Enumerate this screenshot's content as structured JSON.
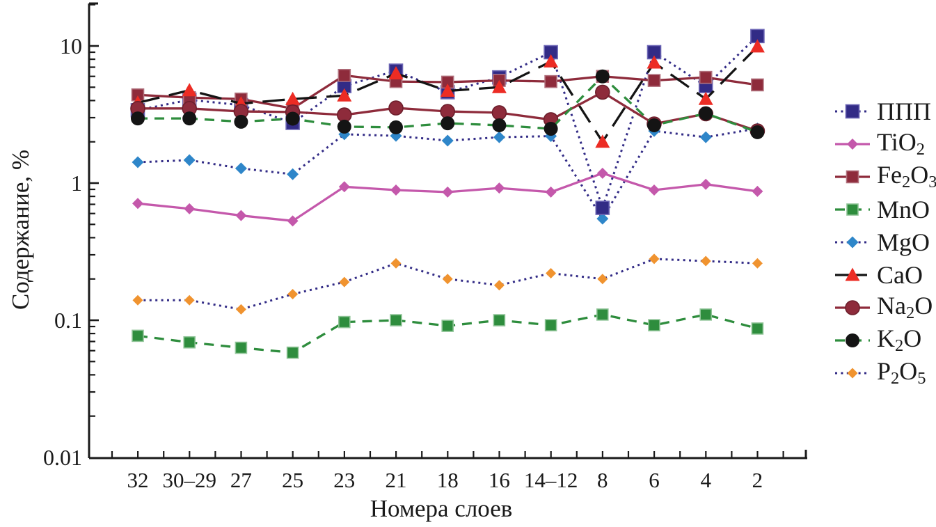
{
  "chart_data": {
    "type": "line",
    "title": "",
    "xlabel": "Номера слоев",
    "ylabel": "Содержание, %",
    "y_scale": "log",
    "ylim": [
      0.01,
      20
    ],
    "grid": false,
    "legend_position": "right",
    "y_tick_labels": [
      "10",
      "1",
      "0.1",
      "0.01"
    ],
    "y_tick_values": [
      10,
      1,
      0.1,
      0.01
    ],
    "categories": [
      "32",
      "30–29",
      "27",
      "25",
      "23",
      "21",
      "18",
      "16",
      "14–12",
      "8",
      "6",
      "4",
      "2"
    ],
    "series": [
      {
        "key": "ppp",
        "name": "ППП",
        "label_parts": [
          {
            "text": "ППП"
          }
        ],
        "color": "#322b86",
        "line_color": "#322b86",
        "line_style": "dotted",
        "marker": "square",
        "marker_size": 19,
        "edge": "#6c66b5",
        "z": 5,
        "values": [
          3.4,
          4.05,
          3.7,
          2.75,
          5.1,
          6.6,
          4.6,
          5.9,
          9.0,
          0.66,
          9.0,
          5.1,
          11.8
        ]
      },
      {
        "key": "tio2",
        "name": "TiO2",
        "label_parts": [
          {
            "text": "TiO"
          },
          {
            "text": "2",
            "sub": true
          }
        ],
        "color": "#c458ab",
        "line_color": "#c458ab",
        "line_style": "solid",
        "marker": "diamond",
        "marker_size": 16,
        "edge": "",
        "z": 3,
        "values": [
          0.71,
          0.65,
          0.58,
          0.53,
          0.94,
          0.89,
          0.86,
          0.92,
          0.86,
          1.18,
          0.89,
          0.98,
          0.87
        ]
      },
      {
        "key": "fe2o3",
        "name": "Fe2O3",
        "label_parts": [
          {
            "text": "Fe"
          },
          {
            "text": "2",
            "sub": true
          },
          {
            "text": "O"
          },
          {
            "text": "3",
            "sub": true
          }
        ],
        "color": "#8e2b3b",
        "line_color": "#8e2b3b",
        "line_style": "solid",
        "marker": "square",
        "marker_size": 17,
        "edge": "#b1717d",
        "z": 6,
        "values": [
          4.4,
          4.2,
          4.1,
          3.5,
          6.1,
          5.5,
          5.45,
          5.6,
          5.5,
          6.0,
          5.6,
          5.9,
          5.2
        ]
      },
      {
        "key": "mno",
        "name": "MnO",
        "label_parts": [
          {
            "text": "MnO"
          }
        ],
        "color": "#2e8d3d",
        "line_color": "#2e8d3d",
        "line_style": "dashed",
        "marker": "square",
        "marker_size": 16,
        "edge": "#8fc497",
        "z": 4,
        "values": [
          0.077,
          0.069,
          0.063,
          0.058,
          0.097,
          0.1,
          0.091,
          0.1,
          0.092,
          0.11,
          0.092,
          0.11,
          0.087
        ]
      },
      {
        "key": "mgo",
        "name": "MgO",
        "label_parts": [
          {
            "text": "MgO"
          }
        ],
        "color": "#2e86c9",
        "line_color": "#322b86",
        "line_style": "dotted",
        "marker": "diamond",
        "marker_size": 17,
        "edge": "",
        "z": 1,
        "values": [
          1.42,
          1.47,
          1.28,
          1.16,
          2.27,
          2.21,
          2.04,
          2.16,
          2.2,
          0.55,
          2.4,
          2.16,
          2.5
        ]
      },
      {
        "key": "cao",
        "name": "CaO",
        "label_parts": [
          {
            "text": "CaO"
          }
        ],
        "color": "#ec2c24",
        "line_color": "#141414",
        "line_style": "longdash",
        "marker": "triangle",
        "marker_size": 19,
        "edge": "",
        "z": 7,
        "values": [
          3.85,
          4.75,
          3.8,
          4.1,
          4.35,
          6.3,
          4.7,
          5.0,
          7.7,
          2.0,
          7.55,
          4.1,
          9.9
        ]
      },
      {
        "key": "na2o",
        "name": "Na2O",
        "label_parts": [
          {
            "text": "Na"
          },
          {
            "text": "2",
            "sub": true
          },
          {
            "text": "O"
          }
        ],
        "color": "#8e2b3b",
        "line_color": "#8e2b3b",
        "line_style": "solid",
        "marker": "circle",
        "marker_size": 20,
        "edge": "#6d1f2c",
        "z": 8,
        "values": [
          3.5,
          3.5,
          3.33,
          3.3,
          3.14,
          3.53,
          3.33,
          3.26,
          2.9,
          4.6,
          2.7,
          3.2,
          2.4
        ]
      },
      {
        "key": "k2o",
        "name": "K2O",
        "label_parts": [
          {
            "text": "K"
          },
          {
            "text": "2",
            "sub": true
          },
          {
            "text": "O"
          }
        ],
        "color": "#141414",
        "line_color": "#2e8d3d",
        "line_style": "dashed",
        "marker": "circle",
        "marker_size": 20,
        "edge": "",
        "z": 9,
        "values": [
          2.96,
          2.96,
          2.8,
          2.95,
          2.58,
          2.55,
          2.73,
          2.64,
          2.49,
          6.0,
          2.64,
          3.22,
          2.35
        ]
      },
      {
        "key": "p2o5",
        "name": "P2O5",
        "label_parts": [
          {
            "text": "P"
          },
          {
            "text": "2",
            "sub": true
          },
          {
            "text": "O"
          },
          {
            "text": "5",
            "sub": true
          }
        ],
        "color": "#f0932f",
        "line_color": "#322b86",
        "line_style": "dotted",
        "marker": "diamond",
        "marker_size": 15,
        "edge": "",
        "z": 2,
        "values": [
          0.14,
          0.14,
          0.12,
          0.155,
          0.19,
          0.26,
          0.2,
          0.18,
          0.22,
          0.2,
          0.28,
          0.27,
          0.26
        ]
      }
    ]
  }
}
